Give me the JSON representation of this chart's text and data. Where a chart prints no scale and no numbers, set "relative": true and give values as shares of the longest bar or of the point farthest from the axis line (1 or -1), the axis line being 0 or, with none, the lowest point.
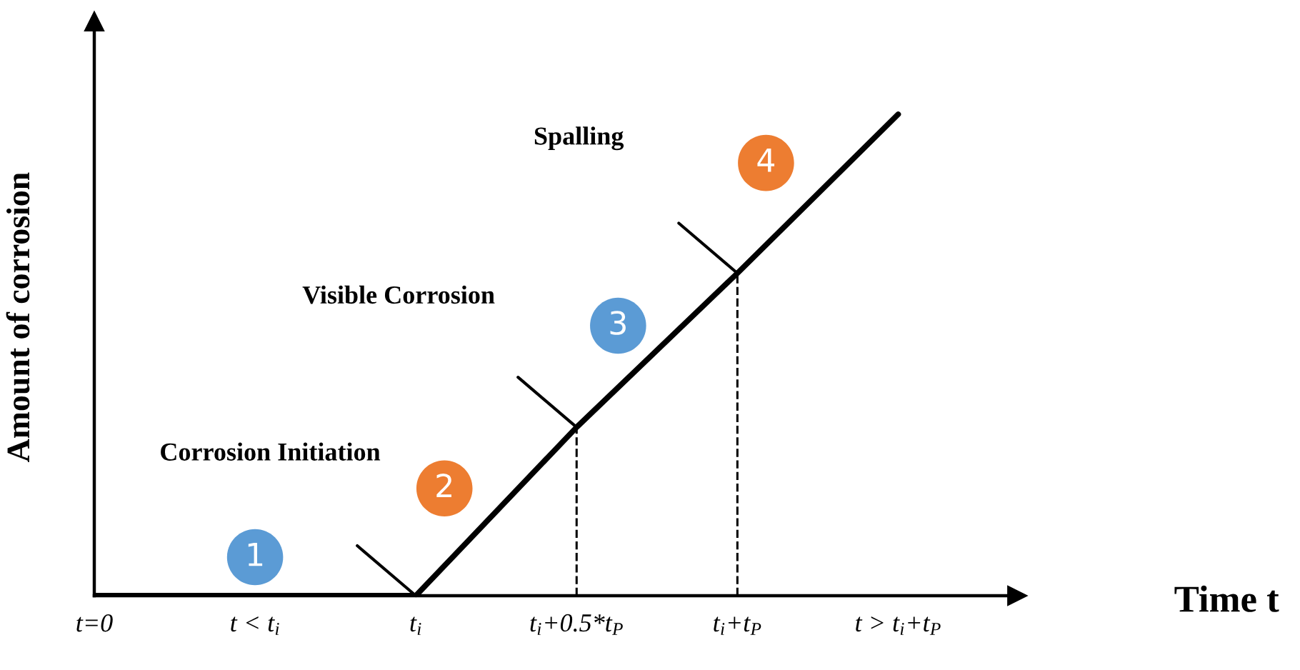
{
  "chart_data": {
    "type": "line",
    "relative": true,
    "xlabel": "Time t",
    "ylabel": "Amount of corrosion",
    "categories": [
      "t=0",
      "t < t$_{i}$",
      "t$_{i}$",
      "t$_{i}$+0.5*t$_{P}$",
      "t$_{i}$+t$_{P}$",
      "t > t$_{i}$+t$_{P}$"
    ],
    "series": [
      {
        "color": "#000000",
        "values": [
          0,
          0,
          0,
          0.35,
          0.67,
          1
        ]
      }
    ],
    "ref_lines": [
      {
        "axis": "x",
        "value": "t$_{i}$+0.5*t$_{P}$",
        "line_style": "dashed",
        "color": "#000000"
      },
      {
        "axis": "x",
        "value": "t$_{i}$+t$_{P}$",
        "line_style": "dashed",
        "color": "#000000"
      }
    ],
    "annotations": [
      "1",
      "Corrosion Initiation",
      "2",
      "Visible Corrosion",
      "3",
      "Spalling",
      "4"
    ],
    "line_style": "solid"
  }
}
